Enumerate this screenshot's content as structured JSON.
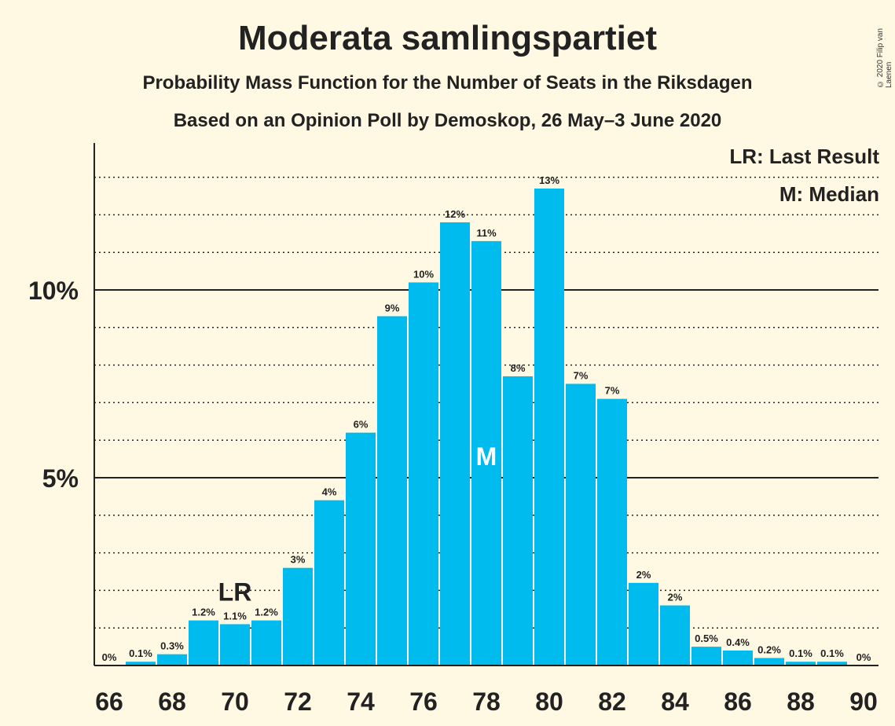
{
  "header": {
    "title": "Moderata samlingspartiet",
    "subtitle1": "Probability Mass Function for the Number of Seats in the Riksdagen",
    "subtitle2": "Based on an Opinion Poll by Demoskop, 26 May–3 June 2020",
    "copyright": "© 2020 Filip van Laenen"
  },
  "legend": {
    "lr": "LR: Last Result",
    "m": "M: Median"
  },
  "chart_data": {
    "type": "bar",
    "title": "Moderata samlingspartiet",
    "categories": [
      66,
      67,
      68,
      69,
      70,
      71,
      72,
      73,
      74,
      75,
      76,
      77,
      78,
      79,
      80,
      81,
      82,
      83,
      84,
      85,
      86,
      87,
      88,
      89,
      90
    ],
    "values": [
      0,
      0.1,
      0.3,
      1.2,
      1.1,
      1.2,
      2.6,
      4.4,
      6.2,
      9.3,
      10.2,
      11.8,
      11.3,
      7.7,
      12.7,
      7.5,
      7.1,
      2.2,
      1.6,
      0.5,
      0.4,
      0.2,
      0.1,
      0.1,
      0
    ],
    "value_labels": [
      "0%",
      "0.1%",
      "0.3%",
      "1.2%",
      "1.1%",
      "1.2%",
      "3%",
      "4%",
      "6%",
      "9%",
      "10%",
      "12%",
      "11%",
      "8%",
      "13%",
      "7%",
      "7%",
      "2%",
      "2%",
      "0.5%",
      "0.4%",
      "0.2%",
      "0.1%",
      "0.1%",
      "0%"
    ],
    "xticks": [
      66,
      68,
      70,
      72,
      74,
      76,
      78,
      80,
      82,
      84,
      86,
      88,
      90
    ],
    "yticks": [
      {
        "value": 5,
        "label": "5%"
      },
      {
        "value": 10,
        "label": "10%"
      }
    ],
    "ylim": [
      0,
      13.9
    ],
    "grid": "dotted every 1%, solid at 5% and 10%",
    "last_result": {
      "seat": 70,
      "label": "LR"
    },
    "median": {
      "seat": 78,
      "label": "M"
    },
    "colors": {
      "bar": "#00bbee",
      "background": "#fff9e3",
      "axis": "#222222"
    }
  }
}
